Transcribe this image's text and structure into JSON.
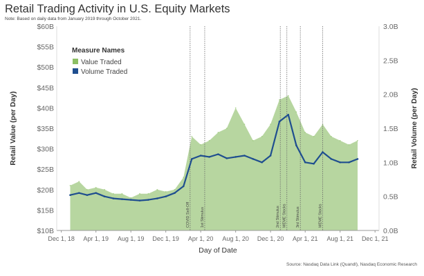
{
  "title": "Retail Trading Activity in U.S. Equity Markets",
  "note": "Note: Based on daily data from January 2019 through October 2021.",
  "source": "Source: Nasdaq Data Link (Quandl), Nasdaq Economic Research",
  "colors": {
    "value_fill": "#b7d6a0",
    "value_legend": "#8cbf64",
    "volume_line": "#1f4e8f",
    "axis": "#999999",
    "event_line": "#666666"
  },
  "chart_data": {
    "type": "line",
    "title": "Retail Trading Activity in U.S. Equity Markets",
    "xlabel": "Day of Date",
    "ylabel_left": "Retail Value (per Day)",
    "ylabel_right": "Retail Volume (per Day)",
    "ylim_left": [
      10,
      60
    ],
    "ylim_right": [
      0,
      3.0
    ],
    "x_range": [
      "2018-11-15",
      "2021-12-15"
    ],
    "y_ticks_left": [
      "$10B",
      "$15B",
      "$20B",
      "$25B",
      "$30B",
      "$35B",
      "$40B",
      "$45B",
      "$50B",
      "$55B",
      "$60B"
    ],
    "y_ticks_left_values": [
      10,
      15,
      20,
      25,
      30,
      35,
      40,
      45,
      50,
      55,
      60
    ],
    "y_ticks_right": [
      "0.0B",
      "0.5B",
      "1.0B",
      "1.5B",
      "2.0B",
      "2.5B",
      "3.0B"
    ],
    "y_ticks_right_values": [
      0,
      0.5,
      1.0,
      1.5,
      2.0,
      2.5,
      3.0
    ],
    "x_ticks": [
      "Dec 1, 18",
      "Apr 1, 19",
      "Aug 1, 19",
      "Dec 1, 19",
      "Apr 1, 20",
      "Aug 1, 20",
      "Dec 1, 20",
      "Apr 1, 21",
      "Aug 1, 21",
      "Dec 1, 21"
    ],
    "x_ticks_dates": [
      "2018-12-01",
      "2019-04-01",
      "2019-08-01",
      "2019-12-01",
      "2020-04-01",
      "2020-08-01",
      "2020-12-01",
      "2021-04-01",
      "2021-08-01",
      "2021-12-01"
    ],
    "legend": {
      "title": "Measure Names",
      "position": "top-left",
      "items": [
        "Value Traded",
        "Volume Traded"
      ]
    },
    "events": [
      {
        "label": "COVID Sell-Off",
        "date": "2020-02-24"
      },
      {
        "label": "1st Stimulus",
        "date": "2020-04-15"
      },
      {
        "label": "2nd Stimulus",
        "date": "2021-01-04"
      },
      {
        "label": "MEME Stocks",
        "date": "2021-01-27"
      },
      {
        "label": "3rd Stimulus",
        "date": "2021-03-15"
      },
      {
        "label": "MEME Stocks",
        "date": "2021-06-01"
      }
    ],
    "series": [
      {
        "name": "Value Traded",
        "axis": "left",
        "unit": "$B",
        "x": [
          "2019-01-01",
          "2019-02-01",
          "2019-03-01",
          "2019-04-01",
          "2019-05-01",
          "2019-06-01",
          "2019-07-01",
          "2019-08-01",
          "2019-09-01",
          "2019-10-01",
          "2019-11-01",
          "2019-12-01",
          "2020-01-01",
          "2020-02-01",
          "2020-03-01",
          "2020-04-01",
          "2020-05-01",
          "2020-06-01",
          "2020-07-01",
          "2020-08-01",
          "2020-09-01",
          "2020-10-01",
          "2020-11-01",
          "2020-12-01",
          "2021-01-01",
          "2021-02-01",
          "2021-03-01",
          "2021-04-01",
          "2021-05-01",
          "2021-06-01",
          "2021-07-01",
          "2021-08-01",
          "2021-09-01",
          "2021-10-01"
        ],
        "values": [
          21,
          22,
          20,
          20.5,
          20,
          19,
          19,
          18,
          19,
          19,
          20,
          19.5,
          20,
          23,
          33,
          31,
          32,
          34,
          35,
          40,
          36,
          32,
          33,
          36,
          42,
          43,
          39,
          34,
          33,
          36,
          33,
          32,
          31,
          32
        ]
      },
      {
        "name": "Volume Traded",
        "axis": "right",
        "unit": "B shares",
        "x": [
          "2019-01-01",
          "2019-02-01",
          "2019-03-01",
          "2019-04-01",
          "2019-05-01",
          "2019-06-01",
          "2019-07-01",
          "2019-08-01",
          "2019-09-01",
          "2019-10-01",
          "2019-11-01",
          "2019-12-01",
          "2020-01-01",
          "2020-02-01",
          "2020-03-01",
          "2020-04-01",
          "2020-05-01",
          "2020-06-01",
          "2020-07-01",
          "2020-08-01",
          "2020-09-01",
          "2020-10-01",
          "2020-11-01",
          "2020-12-01",
          "2021-01-01",
          "2021-02-01",
          "2021-03-01",
          "2021-04-01",
          "2021-05-01",
          "2021-06-01",
          "2021-07-01",
          "2021-08-01",
          "2021-09-01",
          "2021-10-01"
        ],
        "values": [
          0.52,
          0.55,
          0.52,
          0.55,
          0.5,
          0.47,
          0.46,
          0.45,
          0.44,
          0.45,
          0.47,
          0.5,
          0.55,
          0.65,
          1.05,
          1.1,
          1.08,
          1.12,
          1.06,
          1.08,
          1.1,
          1.05,
          1.0,
          1.1,
          1.6,
          1.7,
          1.25,
          1.0,
          0.98,
          1.15,
          1.05,
          1.0,
          1.0,
          1.05
        ]
      }
    ]
  }
}
